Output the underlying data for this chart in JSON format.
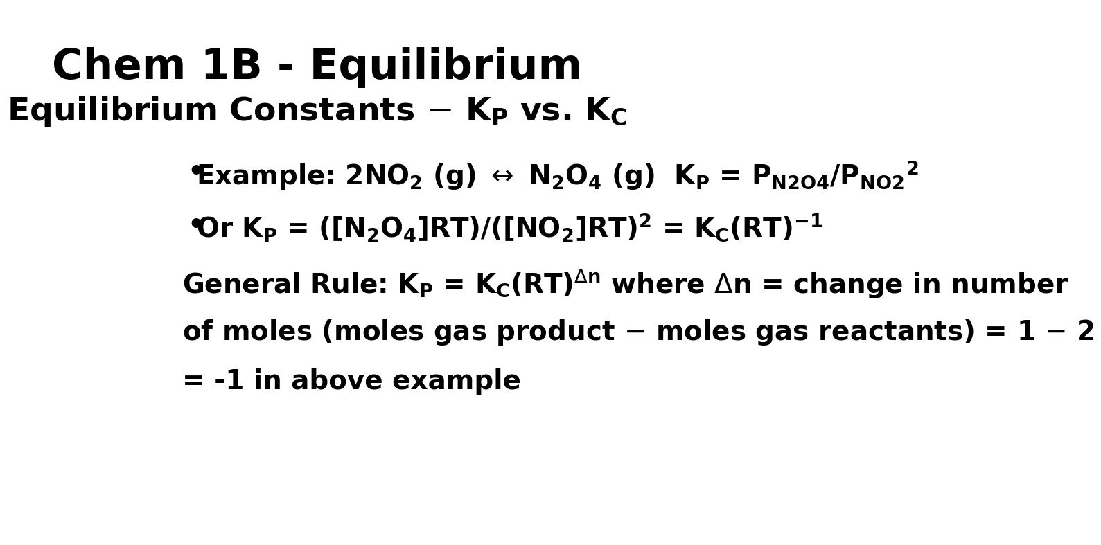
{
  "title_line1": "Chem 1B - Equilibrium",
  "title_line2": "Equilibrium Constants – K",
  "title_line2_sub_p": "P",
  "title_line2_mid": " vs. K",
  "title_line2_sub_c": "C",
  "bg_color": "#ffffff",
  "text_color": "#000000",
  "title_fontsize": 44,
  "subtitle_fontsize": 34,
  "body_fontsize": 28,
  "bullet1_main": "Example: 2NO",
  "bullet2_main": "Or K",
  "general_rule_main": "General Rule: K",
  "font_family": "DejaVu Sans"
}
